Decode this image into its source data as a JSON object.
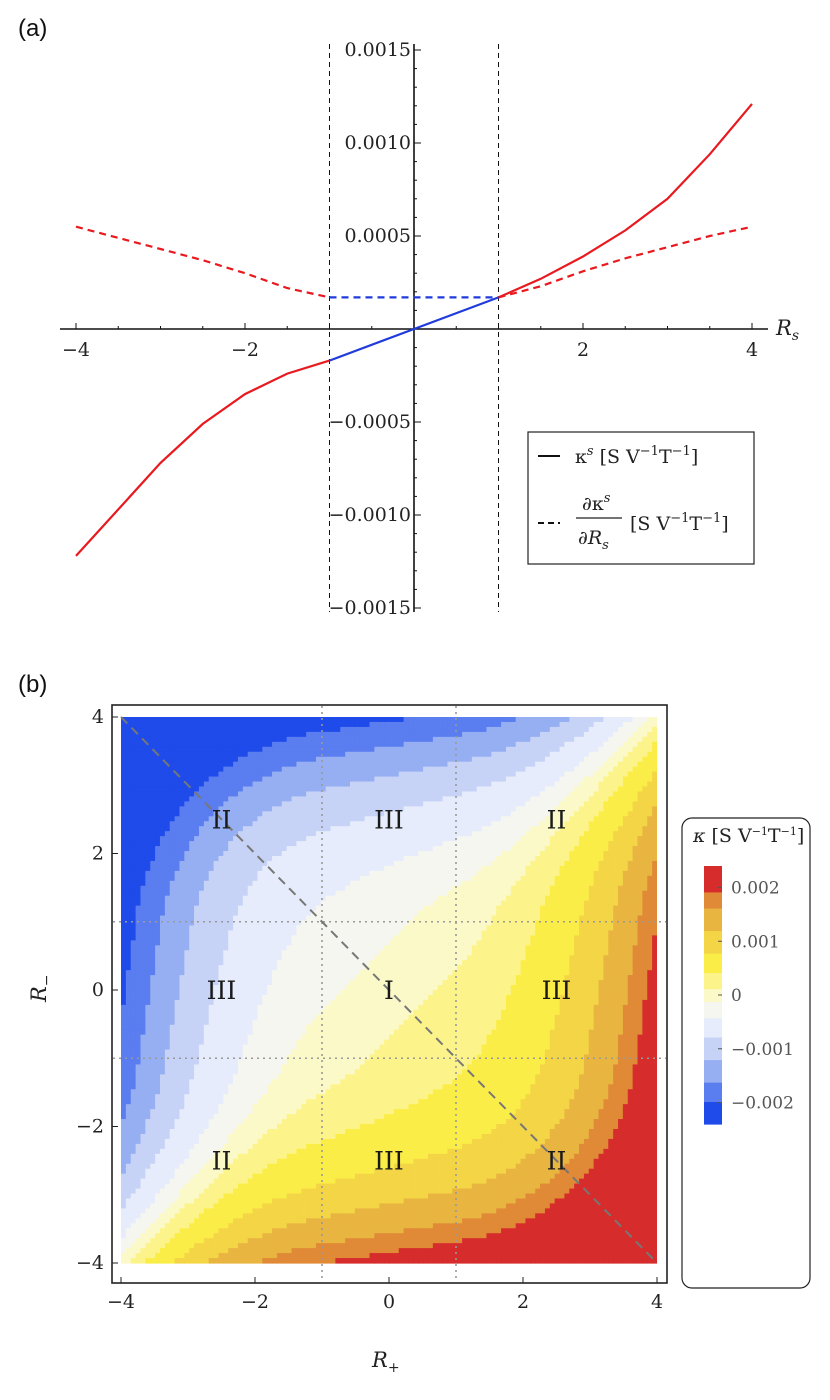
{
  "chart_data": [
    {
      "panel": "(a)",
      "type": "line",
      "xlabel": "R",
      "xlabel_sub": "s",
      "xlim": [
        -4,
        4
      ],
      "ylim": [
        -0.0015,
        0.0015
      ],
      "x_ticks": [
        -4,
        -2,
        2,
        4
      ],
      "y_ticks": [
        {
          "v": 0.0015,
          "t": "0.0015"
        },
        {
          "v": 0.001,
          "t": "0.0010"
        },
        {
          "v": 0.0005,
          "t": "0.0005"
        },
        {
          "v": -0.0005,
          "t": "−0.0005"
        },
        {
          "v": -0.001,
          "t": "−0.0010"
        },
        {
          "v": -0.0015,
          "t": "−0.0015"
        }
      ],
      "x_tick_labels": [
        "−4",
        "−2",
        "2",
        "4"
      ],
      "guides_x": [
        -1,
        1
      ],
      "legend_placement": "bottom-right",
      "legend": [
        {
          "style": "solid",
          "label": "κ^s [S V^−1 T^−1]",
          "html": "κ<tspan dy=\"-8\" font-size=\"13\" font-style=\"italic\">s</tspan><tspan dy=\"8\"> [S V</tspan><tspan dy=\"-8\" font-size=\"13\">−1</tspan><tspan dy=\"8\">T</tspan><tspan dy=\"-8\" font-size=\"13\">−1</tspan><tspan dy=\"8\">]</tspan>"
        },
        {
          "style": "dashed",
          "label": "∂κ^s/∂R_s [S V^−1 T^−1]"
        }
      ],
      "series": [
        {
          "style": "solid",
          "color": "#e8191f",
          "x": [
            -4,
            -3.5,
            -3,
            -2.5,
            -2,
            -1.5,
            -1
          ],
          "y": [
            -0.00122,
            -0.00097,
            -0.00072,
            -0.00051,
            -0.00035,
            -0.00024,
            -0.00017
          ]
        },
        {
          "style": "solid",
          "color": "#1f3bdc",
          "x": [
            -1,
            0,
            1
          ],
          "y": [
            -0.00017,
            0,
            0.00017
          ]
        },
        {
          "style": "solid",
          "color": "#e8191f",
          "x": [
            1,
            1.5,
            2,
            2.5,
            3,
            3.5,
            4
          ],
          "y": [
            0.00017,
            0.00027,
            0.00039,
            0.00053,
            0.0007,
            0.00094,
            0.00121
          ]
        },
        {
          "style": "dashed",
          "color": "#e8191f",
          "x": [
            -4,
            -3.5,
            -3,
            -2.5,
            -2,
            -1.5,
            -1
          ],
          "y": [
            0.00055,
            0.00049,
            0.00043,
            0.00037,
            0.0003,
            0.00022,
            0.00017
          ]
        },
        {
          "style": "dashed",
          "color": "#1f3bdc",
          "x": [
            -1,
            1
          ],
          "y": [
            0.00017,
            0.00017
          ]
        },
        {
          "style": "dashed",
          "color": "#e8191f",
          "x": [
            1,
            1.5,
            2,
            2.5,
            3,
            3.5,
            4
          ],
          "y": [
            0.00017,
            0.00023,
            0.00031,
            0.00038,
            0.00044,
            0.0005,
            0.00055
          ]
        }
      ]
    },
    {
      "panel": "(b)",
      "type": "heatmap",
      "xlabel": "R",
      "xlabel_sub": "+",
      "ylabel": "R",
      "ylabel_sub": "−",
      "xlim": [
        -4,
        4
      ],
      "ylim": [
        -4,
        4
      ],
      "ticks": [
        -4,
        -2,
        0,
        2,
        4
      ],
      "tick_labels": [
        "−4",
        "−2",
        "0",
        "2",
        "4"
      ],
      "guides": [
        -1,
        1
      ],
      "diagonal": {
        "from": [
          -4,
          4
        ],
        "to": [
          4,
          -4
        ]
      },
      "regions": [
        {
          "label": "II",
          "x": -2.5,
          "y": 2.5
        },
        {
          "label": "III",
          "x": 0,
          "y": 2.5
        },
        {
          "label": "II",
          "x": 2.5,
          "y": 2.5
        },
        {
          "label": "III",
          "x": -2.5,
          "y": 0
        },
        {
          "label": "I",
          "x": 0,
          "y": 0
        },
        {
          "label": "III",
          "x": 2.5,
          "y": 0
        },
        {
          "label": "II",
          "x": -2.5,
          "y": -2.5
        },
        {
          "label": "III",
          "x": 0,
          "y": -2.5
        },
        {
          "label": "II",
          "x": 2.5,
          "y": -2.5
        }
      ],
      "colorbar": {
        "title": "κ [S V^−1 T^−1]",
        "range": [
          -0.0024,
          0.0024
        ],
        "ticks": [
          {
            "v": 0.002,
            "t": "0.002"
          },
          {
            "v": 0.001,
            "t": "0.001"
          },
          {
            "v": 0,
            "t": "0"
          },
          {
            "v": -0.001,
            "t": "−0.001"
          },
          {
            "v": -0.002,
            "t": "−0.002"
          }
        ],
        "colors": [
          "#1f4bea",
          "#5a7df0",
          "#96aef2",
          "#c7d3f6",
          "#e6ecfb",
          "#f5f6f0",
          "#fbf9c8",
          "#fcf48a",
          "#fbed48",
          "#f3d546",
          "#e9b541",
          "#e08a37",
          "#d62c2c"
        ]
      },
      "levels": [
        -0.002,
        -0.0016,
        -0.0012,
        -0.0008,
        -0.0004,
        -0.00012,
        0.00012,
        0.0004,
        0.0008,
        0.0012,
        0.0016,
        0.0019,
        0.0022
      ]
    }
  ]
}
